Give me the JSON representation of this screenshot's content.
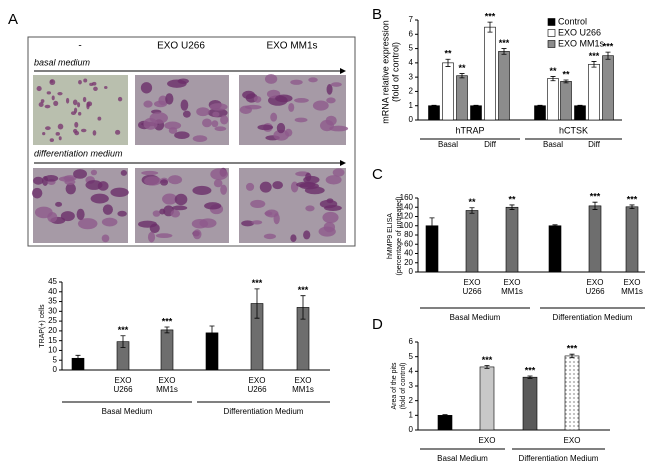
{
  "figure": {
    "panels": [
      "A",
      "B",
      "C",
      "D"
    ],
    "micrograph_columns": [
      "-",
      "EXO U266",
      "EXO MM1s"
    ],
    "micrograph_rows": [
      "basal medium",
      "differentiation medium"
    ]
  },
  "chart_data": [
    {
      "type": "bar",
      "ylabel": [
        "TRAP(+) cells"
      ],
      "categories": [
        null,
        "EXO U266",
        "EXO MM1s",
        null,
        "EXO U266",
        "EXO MM1s"
      ],
      "groups": [
        "Basal Medium",
        "Differentiation Medium"
      ],
      "series": [
        {
          "values": [
            6,
            14.5,
            20.5,
            19,
            34,
            32
          ],
          "errors": [
            1.5,
            3,
            1.5,
            3.5,
            7.5,
            6
          ],
          "colors": [
            "#000000",
            "#6e6e6e",
            "#6e6e6e",
            "#000000",
            "#6e6e6e",
            "#6e6e6e"
          ],
          "annotations": [
            null,
            "***",
            "***",
            null,
            "***",
            "***"
          ]
        }
      ],
      "ylim": [
        0,
        45
      ],
      "yticks": [
        0,
        5,
        10,
        15,
        20,
        25,
        30,
        35,
        40,
        45
      ]
    },
    {
      "type": "bar",
      "ylabel": [
        "mRNA relative expression",
        "(fold of control)"
      ],
      "categories": [
        "Basal",
        "Diff",
        "Basal",
        "Diff"
      ],
      "groups": [
        "hTRAP",
        "hCTSK"
      ],
      "series": [
        {
          "name": "Control",
          "color": "#000000",
          "values": [
            1,
            1,
            1,
            1
          ],
          "errors": [
            0.03,
            0.03,
            0.03,
            0.03
          ],
          "annotations": [
            null,
            null,
            null,
            null
          ]
        },
        {
          "name": "EXO  U266",
          "color": "#ffffff",
          "values": [
            4,
            6.5,
            2.9,
            3.9
          ],
          "errors": [
            0.25,
            0.35,
            0.15,
            0.2
          ],
          "annotations": [
            "**",
            "***",
            "**",
            "***"
          ]
        },
        {
          "name": "EXO MM1s",
          "color": "#8c8c8c",
          "values": [
            3.1,
            4.8,
            2.7,
            4.5
          ],
          "errors": [
            0.15,
            0.2,
            0.1,
            0.25
          ],
          "annotations": [
            "**",
            "***",
            "**",
            "***"
          ]
        }
      ],
      "legend": "upper right",
      "ylim": [
        0,
        7
      ],
      "yticks": [
        0,
        1,
        2,
        3,
        4,
        5,
        6,
        7
      ]
    },
    {
      "type": "bar",
      "ylabel": [
        "hMMP9 ELISA",
        "(percentage of untreated)"
      ],
      "categories": [
        null,
        "EXO U266",
        "EXO MM1s",
        null,
        "EXO U266",
        "EXO MM1s"
      ],
      "groups": [
        "Basal Medium",
        "Differentiation Medium"
      ],
      "series": [
        {
          "values": [
            100,
            133,
            140,
            100,
            143,
            141
          ],
          "errors": [
            17,
            6,
            5,
            2,
            8,
            4
          ],
          "colors": [
            "#000000",
            "#6e6e6e",
            "#6e6e6e",
            "#000000",
            "#6e6e6e",
            "#6e6e6e"
          ],
          "annotations": [
            null,
            "**",
            "**",
            null,
            "***",
            "***"
          ]
        }
      ],
      "ylim": [
        0,
        160
      ],
      "yticks": [
        0,
        20,
        40,
        60,
        80,
        100,
        120,
        140,
        160
      ]
    },
    {
      "type": "bar",
      "ylabel": [
        "Area of the pits",
        "(fold of control)"
      ],
      "categories": [
        null,
        "EXO",
        null,
        "EXO"
      ],
      "groups": [
        "Basal Medium",
        "Differentiation Medium"
      ],
      "series": [
        {
          "values": [
            1,
            4.3,
            3.6,
            5.05
          ],
          "errors": [
            0.05,
            0.1,
            0.08,
            0.12
          ],
          "colors": [
            "#000000",
            "#c8c8c8",
            "#5a5a5a",
            "#ffffff"
          ],
          "patterns": [
            null,
            null,
            null,
            "dots"
          ],
          "annotations": [
            null,
            "***",
            "***",
            "***"
          ]
        }
      ],
      "ylim": [
        0,
        6
      ],
      "yticks": [
        0,
        1,
        2,
        3,
        4,
        5,
        6
      ]
    }
  ]
}
